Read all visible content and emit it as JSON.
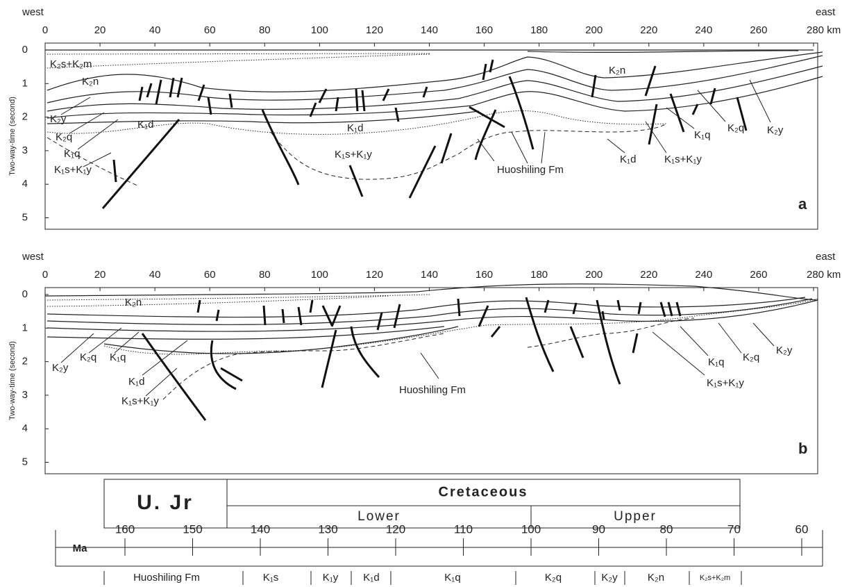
{
  "panels": [
    {
      "west": "west",
      "east": "east",
      "xticks": [
        0,
        20,
        40,
        60,
        80,
        100,
        120,
        140,
        160,
        180,
        200,
        220,
        240,
        260,
        {
          "value": 280,
          "label": "280 km"
        }
      ],
      "yticks": [
        0,
        1,
        2,
        3,
        4,
        5
      ],
      "ylabel": "Two-way-time (second)",
      "letter": "a",
      "labels": [
        "K₂s+K₂m",
        "K₂n",
        "K₂y",
        "K₂q",
        "K₁q",
        "K₁s+K₁y",
        "K₁d",
        "K₁d",
        "K₁s+K₁y",
        "Huoshiling Fm",
        "K₂n",
        "K₁d",
        "K₁s+K₁y",
        "K₁q",
        "K₂q",
        "K₂y"
      ]
    },
    {
      "west": "west",
      "east": "east",
      "xticks": [
        0,
        20,
        40,
        60,
        80,
        100,
        120,
        140,
        160,
        180,
        200,
        220,
        240,
        260,
        {
          "value": 280,
          "label": "280 km"
        }
      ],
      "yticks": [
        0,
        1,
        2,
        3,
        4,
        5
      ],
      "ylabel": "Two-way-time (second)",
      "letter": "b",
      "labels": [
        "K₂n",
        "K₂y",
        "K₂q",
        "K₁q",
        "K₁d",
        "K₁s+K₁y",
        "Huoshiling Fm",
        "K₁s+K₁y",
        "K₁q",
        "K₂q",
        "K₂y"
      ]
    }
  ],
  "timescale": {
    "unit": "Ma",
    "ticks": [
      160,
      150,
      140,
      130,
      120,
      110,
      100,
      90,
      80,
      70,
      60
    ],
    "jurassic": "U. Jr",
    "cretaceous": "Cretaceous",
    "lower": "Lower",
    "upper": "Upper",
    "formations": [
      "Huoshiling Fm",
      "K₁s",
      "K₁y",
      "K₁d",
      "K₁q",
      "K₂q",
      "K₂y",
      "K₂n",
      "K₂s+K₂m"
    ]
  }
}
